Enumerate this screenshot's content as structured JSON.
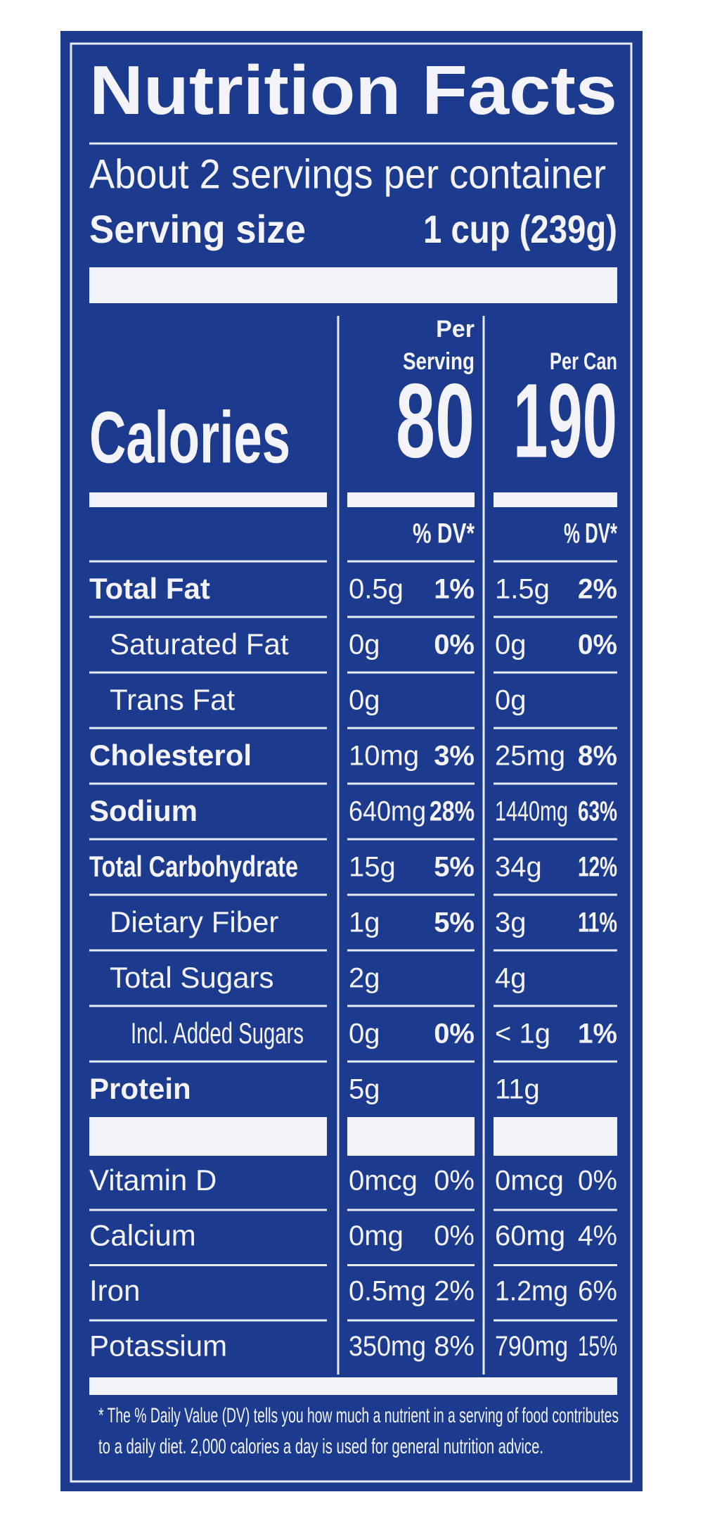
{
  "label": {
    "title": "Nutrition Facts",
    "servings_per_container": "About 2 servings per container",
    "serving_size_label": "Serving size",
    "serving_size_value": "1 cup (239g)",
    "column_headers": {
      "per_serving": [
        "Per",
        "Serving"
      ],
      "per_can": "Per Can"
    },
    "calories_label": "Calories",
    "calories_per_serving": "80",
    "calories_per_can": "190",
    "dv_header": "% DV*",
    "nutrients": [
      {
        "name": "Total Fat",
        "serving_amount": "0.5g",
        "serving_dv": "1%",
        "can_amount": "1.5g",
        "can_dv": "2%"
      },
      {
        "name": "Saturated Fat",
        "serving_amount": "0g",
        "serving_dv": "0%",
        "can_amount": "0g",
        "can_dv": "0%"
      },
      {
        "name": "Trans Fat",
        "serving_amount": "0g",
        "can_amount": "0g"
      },
      {
        "name": "Cholesterol",
        "serving_amount": "10mg",
        "serving_dv": "3%",
        "can_amount": "25mg",
        "can_dv": "8%"
      },
      {
        "name": "Sodium",
        "serving_amount": "640mg",
        "serving_dv": "28%",
        "can_amount": "1440mg",
        "can_dv": "63%"
      },
      {
        "name": "Total Carbohydrate",
        "serving_amount": "15g",
        "serving_dv": "5%",
        "can_amount": "34g",
        "can_dv": "12%"
      },
      {
        "name": "Dietary Fiber",
        "serving_amount": "1g",
        "serving_dv": "5%",
        "can_amount": "3g",
        "can_dv": "11%"
      },
      {
        "name": "Total Sugars",
        "serving_amount": "2g",
        "can_amount": "4g"
      },
      {
        "name": "Incl. Added Sugars",
        "serving_amount": "0g",
        "serving_dv": "0%",
        "can_amount": "< 1g",
        "can_dv": "1%"
      },
      {
        "name": "Protein",
        "serving_amount": "5g",
        "can_amount": "11g"
      }
    ],
    "vitamins": [
      {
        "name": "Vitamin D",
        "serving_amount": "0mcg",
        "serving_dv": "0%",
        "can_amount": "0mcg",
        "can_dv": "0%"
      },
      {
        "name": "Calcium",
        "serving_amount": "0mg",
        "serving_dv": "0%",
        "can_amount": "60mg",
        "can_dv": "4%"
      },
      {
        "name": "Iron",
        "serving_amount": "0.5mg",
        "serving_dv": "2%",
        "can_amount": "1.2mg",
        "can_dv": "6%"
      },
      {
        "name": "Potassium",
        "serving_amount": "350mg",
        "serving_dv": "8%",
        "can_amount": "790mg",
        "can_dv": "15%"
      }
    ],
    "footnote": [
      "* The % Daily Value (DV) tells you how much a nutrient in a serving of food contributes",
      "to a daily diet. 2,000 calories a day is used for general nutrition advice."
    ]
  }
}
